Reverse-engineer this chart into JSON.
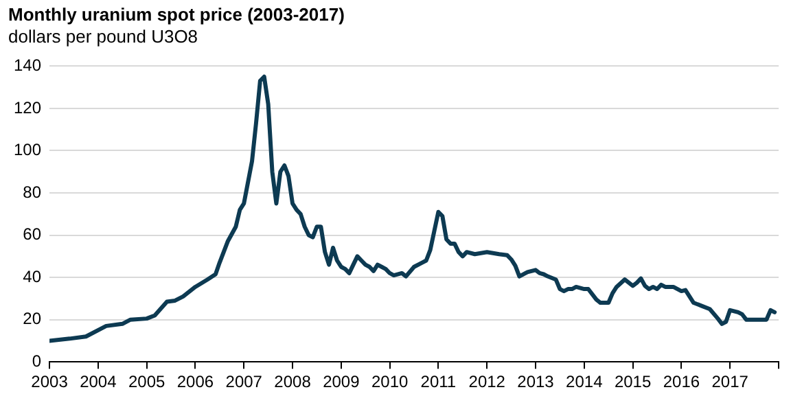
{
  "chart_data": {
    "type": "line",
    "title": "Monthly uranium spot price (2003-2017)",
    "subtitle": "dollars per pound U3O8",
    "x": [
      "2003-01",
      "2003-06",
      "2003-10",
      "2004-03",
      "2004-07",
      "2004-09",
      "2005-01",
      "2005-03",
      "2005-06",
      "2005-08",
      "2005-10",
      "2006-01",
      "2006-04",
      "2006-06",
      "2006-07",
      "2006-09",
      "2006-11",
      "2006-12",
      "2007-01",
      "2007-02",
      "2007-03",
      "2007-04",
      "2007-05",
      "2007-06",
      "2007-07",
      "2007-08",
      "2007-09",
      "2007-10",
      "2007-11",
      "2007-12",
      "2008-01",
      "2008-02",
      "2008-03",
      "2008-04",
      "2008-05",
      "2008-06",
      "2008-07",
      "2008-08",
      "2008-09",
      "2008-10",
      "2008-11",
      "2008-12",
      "2009-01",
      "2009-02",
      "2009-03",
      "2009-04",
      "2009-05",
      "2009-06",
      "2009-07",
      "2009-08",
      "2009-09",
      "2009-10",
      "2009-11",
      "2009-12",
      "2010-01",
      "2010-02",
      "2010-04",
      "2010-05",
      "2010-07",
      "2010-09",
      "2010-10",
      "2010-11",
      "2010-12",
      "2011-01",
      "2011-02",
      "2011-03",
      "2011-04",
      "2011-05",
      "2011-06",
      "2011-07",
      "2011-08",
      "2011-10",
      "2012-01",
      "2012-04",
      "2012-06",
      "2012-07",
      "2012-08",
      "2012-09",
      "2012-11",
      "2013-01",
      "2013-02",
      "2013-03",
      "2013-04",
      "2013-06",
      "2013-07",
      "2013-08",
      "2013-09",
      "2013-10",
      "2013-11",
      "2014-01",
      "2014-02",
      "2014-04",
      "2014-05",
      "2014-07",
      "2014-08",
      "2014-09",
      "2014-11",
      "2015-01",
      "2015-02",
      "2015-03",
      "2015-04",
      "2015-05",
      "2015-06",
      "2015-07",
      "2015-08",
      "2015-09",
      "2015-11",
      "2016-01",
      "2016-02",
      "2016-04",
      "2016-06",
      "2016-08",
      "2016-10",
      "2016-11",
      "2016-12",
      "2017-01",
      "2017-03",
      "2017-04",
      "2017-05",
      "2017-10",
      "2017-11",
      "2017-12"
    ],
    "series": [
      {
        "color": "#0d3a52",
        "values": [
          10,
          11,
          12,
          17,
          18,
          20,
          20.5,
          22,
          28.5,
          29,
          31,
          35.5,
          39,
          41.5,
          47,
          57,
          64,
          72,
          75,
          85,
          95,
          113,
          133,
          135,
          122,
          90,
          75,
          90,
          93,
          88,
          75,
          72,
          70,
          64,
          60,
          59,
          64,
          64,
          52,
          46,
          54,
          48,
          45,
          44,
          42,
          46,
          50,
          48,
          46,
          45,
          43,
          46,
          45,
          44,
          42,
          41,
          42,
          40.5,
          45,
          47,
          48,
          53,
          62,
          71,
          69,
          58,
          56,
          56,
          52,
          50,
          52,
          51,
          52,
          51,
          50.5,
          48.5,
          45.5,
          40.5,
          42.5,
          43.5,
          42,
          41.5,
          40.5,
          39,
          34.5,
          33.5,
          34.5,
          34.5,
          35.5,
          34.5,
          34.5,
          29.5,
          28,
          28,
          32.5,
          35.5,
          39,
          36,
          37.5,
          39.5,
          36,
          34.5,
          35.5,
          34.5,
          36.5,
          35.5,
          35.5,
          33.5,
          34,
          28,
          26.5,
          25,
          20.5,
          18,
          19,
          24.5,
          23.5,
          22.5,
          20,
          20,
          24.5,
          23.5
        ]
      }
    ],
    "xlim": [
      "2003-01",
      "2018-01"
    ],
    "xticks": [
      "2003",
      "2004",
      "2005",
      "2006",
      "2007",
      "2008",
      "2009",
      "2010",
      "2011",
      "2012",
      "2013",
      "2014",
      "2015",
      "2016",
      "2017",
      {
        "value": "2018",
        "label": null
      }
    ],
    "ylim": [
      0,
      140
    ],
    "yticks": [
      0,
      20,
      40,
      60,
      80,
      100,
      120,
      140
    ],
    "grid": "y",
    "legend": false,
    "marker": "none",
    "line_style": "solid"
  }
}
